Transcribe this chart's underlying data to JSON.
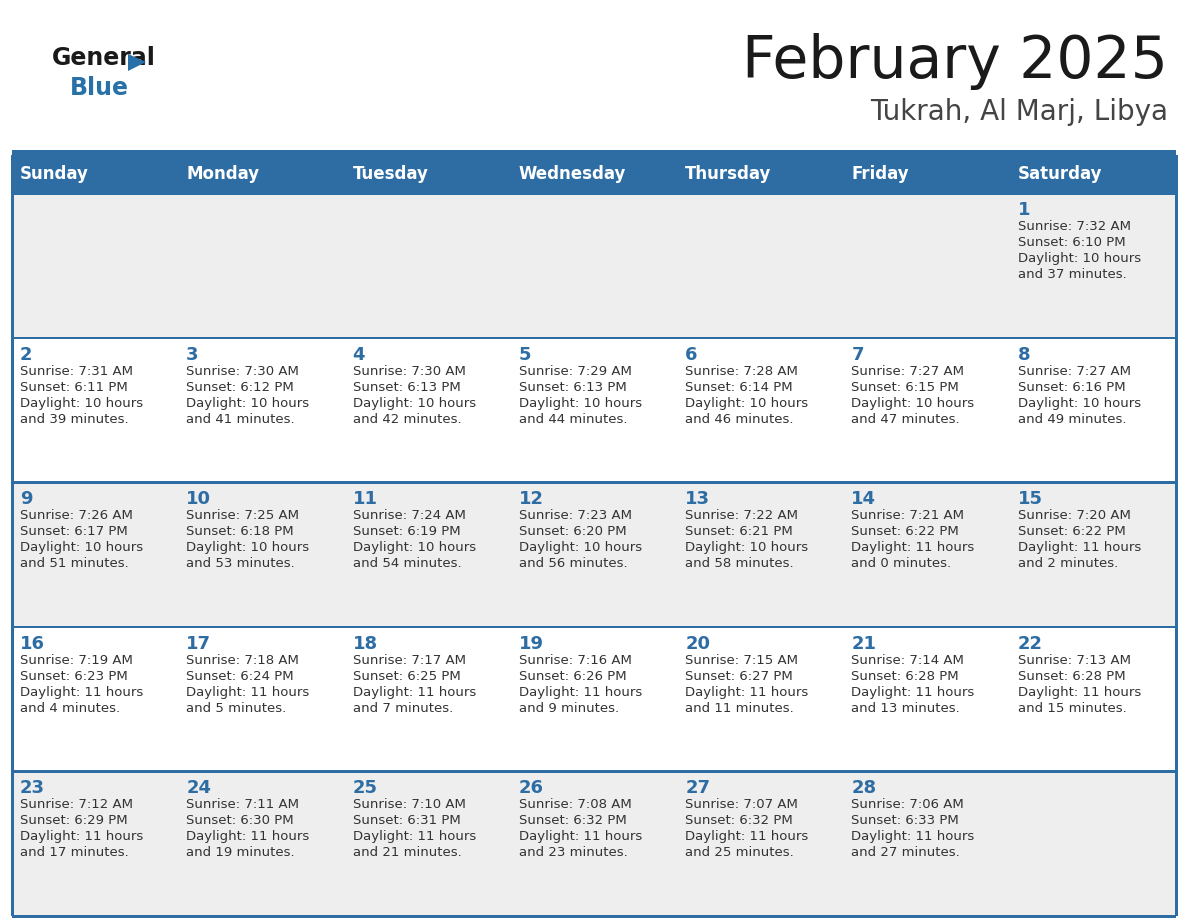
{
  "title": "February 2025",
  "subtitle": "Tukrah, Al Marj, Libya",
  "header_bg": "#2E6DA4",
  "header_text_color": "#FFFFFF",
  "day_names": [
    "Sunday",
    "Monday",
    "Tuesday",
    "Wednesday",
    "Thursday",
    "Friday",
    "Saturday"
  ],
  "cell_bg_even": "#EEEEEE",
  "cell_bg_odd": "#FFFFFF",
  "border_color": "#2E6DA4",
  "title_color": "#1a1a1a",
  "subtitle_color": "#444444",
  "day_num_color": "#2E6DA4",
  "info_color": "#333333",
  "logo_general_color": "#1a1a1a",
  "logo_blue_color": "#2871A8",
  "days": [
    {
      "date": 1,
      "row": 0,
      "col": 6,
      "sunrise": "7:32 AM",
      "sunset": "6:10 PM",
      "daylight_h": "10 hours",
      "daylight_m": "and 37 minutes."
    },
    {
      "date": 2,
      "row": 1,
      "col": 0,
      "sunrise": "7:31 AM",
      "sunset": "6:11 PM",
      "daylight_h": "10 hours",
      "daylight_m": "and 39 minutes."
    },
    {
      "date": 3,
      "row": 1,
      "col": 1,
      "sunrise": "7:30 AM",
      "sunset": "6:12 PM",
      "daylight_h": "10 hours",
      "daylight_m": "and 41 minutes."
    },
    {
      "date": 4,
      "row": 1,
      "col": 2,
      "sunrise": "7:30 AM",
      "sunset": "6:13 PM",
      "daylight_h": "10 hours",
      "daylight_m": "and 42 minutes."
    },
    {
      "date": 5,
      "row": 1,
      "col": 3,
      "sunrise": "7:29 AM",
      "sunset": "6:13 PM",
      "daylight_h": "10 hours",
      "daylight_m": "and 44 minutes."
    },
    {
      "date": 6,
      "row": 1,
      "col": 4,
      "sunrise": "7:28 AM",
      "sunset": "6:14 PM",
      "daylight_h": "10 hours",
      "daylight_m": "and 46 minutes."
    },
    {
      "date": 7,
      "row": 1,
      "col": 5,
      "sunrise": "7:27 AM",
      "sunset": "6:15 PM",
      "daylight_h": "10 hours",
      "daylight_m": "and 47 minutes."
    },
    {
      "date": 8,
      "row": 1,
      "col": 6,
      "sunrise": "7:27 AM",
      "sunset": "6:16 PM",
      "daylight_h": "10 hours",
      "daylight_m": "and 49 minutes."
    },
    {
      "date": 9,
      "row": 2,
      "col": 0,
      "sunrise": "7:26 AM",
      "sunset": "6:17 PM",
      "daylight_h": "10 hours",
      "daylight_m": "and 51 minutes."
    },
    {
      "date": 10,
      "row": 2,
      "col": 1,
      "sunrise": "7:25 AM",
      "sunset": "6:18 PM",
      "daylight_h": "10 hours",
      "daylight_m": "and 53 minutes."
    },
    {
      "date": 11,
      "row": 2,
      "col": 2,
      "sunrise": "7:24 AM",
      "sunset": "6:19 PM",
      "daylight_h": "10 hours",
      "daylight_m": "and 54 minutes."
    },
    {
      "date": 12,
      "row": 2,
      "col": 3,
      "sunrise": "7:23 AM",
      "sunset": "6:20 PM",
      "daylight_h": "10 hours",
      "daylight_m": "and 56 minutes."
    },
    {
      "date": 13,
      "row": 2,
      "col": 4,
      "sunrise": "7:22 AM",
      "sunset": "6:21 PM",
      "daylight_h": "10 hours",
      "daylight_m": "and 58 minutes."
    },
    {
      "date": 14,
      "row": 2,
      "col": 5,
      "sunrise": "7:21 AM",
      "sunset": "6:22 PM",
      "daylight_h": "11 hours",
      "daylight_m": "and 0 minutes."
    },
    {
      "date": 15,
      "row": 2,
      "col": 6,
      "sunrise": "7:20 AM",
      "sunset": "6:22 PM",
      "daylight_h": "11 hours",
      "daylight_m": "and 2 minutes."
    },
    {
      "date": 16,
      "row": 3,
      "col": 0,
      "sunrise": "7:19 AM",
      "sunset": "6:23 PM",
      "daylight_h": "11 hours",
      "daylight_m": "and 4 minutes."
    },
    {
      "date": 17,
      "row": 3,
      "col": 1,
      "sunrise": "7:18 AM",
      "sunset": "6:24 PM",
      "daylight_h": "11 hours",
      "daylight_m": "and 5 minutes."
    },
    {
      "date": 18,
      "row": 3,
      "col": 2,
      "sunrise": "7:17 AM",
      "sunset": "6:25 PM",
      "daylight_h": "11 hours",
      "daylight_m": "and 7 minutes."
    },
    {
      "date": 19,
      "row": 3,
      "col": 3,
      "sunrise": "7:16 AM",
      "sunset": "6:26 PM",
      "daylight_h": "11 hours",
      "daylight_m": "and 9 minutes."
    },
    {
      "date": 20,
      "row": 3,
      "col": 4,
      "sunrise": "7:15 AM",
      "sunset": "6:27 PM",
      "daylight_h": "11 hours",
      "daylight_m": "and 11 minutes."
    },
    {
      "date": 21,
      "row": 3,
      "col": 5,
      "sunrise": "7:14 AM",
      "sunset": "6:28 PM",
      "daylight_h": "11 hours",
      "daylight_m": "and 13 minutes."
    },
    {
      "date": 22,
      "row": 3,
      "col": 6,
      "sunrise": "7:13 AM",
      "sunset": "6:28 PM",
      "daylight_h": "11 hours",
      "daylight_m": "and 15 minutes."
    },
    {
      "date": 23,
      "row": 4,
      "col": 0,
      "sunrise": "7:12 AM",
      "sunset": "6:29 PM",
      "daylight_h": "11 hours",
      "daylight_m": "and 17 minutes."
    },
    {
      "date": 24,
      "row": 4,
      "col": 1,
      "sunrise": "7:11 AM",
      "sunset": "6:30 PM",
      "daylight_h": "11 hours",
      "daylight_m": "and 19 minutes."
    },
    {
      "date": 25,
      "row": 4,
      "col": 2,
      "sunrise": "7:10 AM",
      "sunset": "6:31 PM",
      "daylight_h": "11 hours",
      "daylight_m": "and 21 minutes."
    },
    {
      "date": 26,
      "row": 4,
      "col": 3,
      "sunrise": "7:08 AM",
      "sunset": "6:32 PM",
      "daylight_h": "11 hours",
      "daylight_m": "and 23 minutes."
    },
    {
      "date": 27,
      "row": 4,
      "col": 4,
      "sunrise": "7:07 AM",
      "sunset": "6:32 PM",
      "daylight_h": "11 hours",
      "daylight_m": "and 25 minutes."
    },
    {
      "date": 28,
      "row": 4,
      "col": 5,
      "sunrise": "7:06 AM",
      "sunset": "6:33 PM",
      "daylight_h": "11 hours",
      "daylight_m": "and 27 minutes."
    }
  ]
}
